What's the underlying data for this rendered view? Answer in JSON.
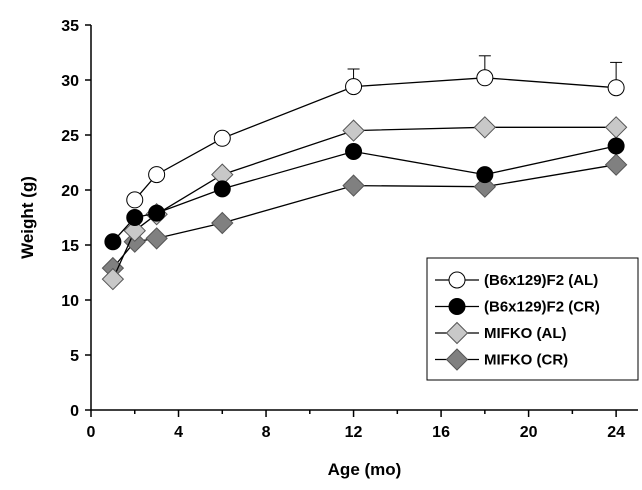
{
  "chart_data": {
    "type": "line",
    "title": "",
    "xlabel": "Age (mo)",
    "ylabel": "Weight (g)",
    "xlim": [
      0,
      25
    ],
    "ylim": [
      0,
      35
    ],
    "xticks": [
      0,
      4,
      8,
      12,
      16,
      20,
      24
    ],
    "yticks": [
      0,
      5,
      10,
      15,
      20,
      25,
      30,
      35
    ],
    "grid": false,
    "legend_position": "bottom-right",
    "series": [
      {
        "name": "(B6x129)F2 (AL)",
        "marker": "circle",
        "fill": "#ffffff",
        "x": [
          2,
          3,
          6,
          12,
          18,
          24
        ],
        "y": [
          19.1,
          21.4,
          24.7,
          29.4,
          30.2,
          29.3
        ],
        "error_upper": [
          null,
          null,
          null,
          1.6,
          2.0,
          2.3
        ]
      },
      {
        "name": "(B6x129)F2 (CR)",
        "marker": "circle",
        "fill": "#000000",
        "x": [
          1,
          2,
          3,
          6,
          12,
          18,
          24
        ],
        "y": [
          15.3,
          17.5,
          17.9,
          20.1,
          23.5,
          21.4,
          24.0
        ]
      },
      {
        "name": "MIFKO (AL)",
        "marker": "diamond",
        "fill": "#c8c8c8",
        "x": [
          1,
          2,
          3,
          6,
          12,
          18,
          24
        ],
        "y": [
          11.9,
          16.3,
          17.8,
          21.4,
          25.4,
          25.7,
          25.7
        ]
      },
      {
        "name": "MIFKO (CR)",
        "marker": "diamond",
        "fill": "#808080",
        "x": [
          1,
          2,
          3,
          6,
          12,
          18,
          24
        ],
        "y": [
          12.9,
          15.3,
          15.6,
          17.0,
          20.4,
          20.3,
          22.3
        ]
      }
    ]
  }
}
